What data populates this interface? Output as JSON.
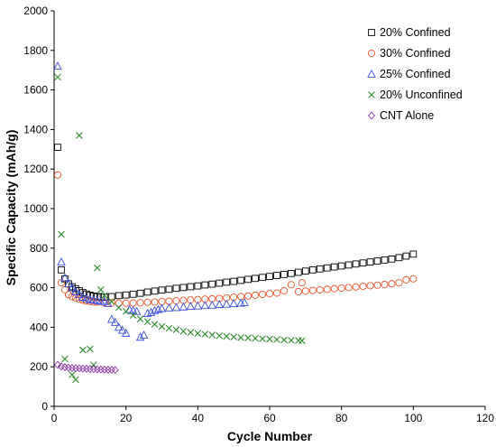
{
  "chart_data": {
    "type": "scatter",
    "xlabel": "Cycle Number",
    "ylabel": "Specific Capacity (mAh/g)",
    "xlim": [
      0,
      120
    ],
    "ylim": [
      0,
      2000
    ],
    "xticks": [
      0,
      20,
      40,
      60,
      80,
      100,
      120
    ],
    "yticks": [
      0,
      200,
      400,
      600,
      800,
      1000,
      1200,
      1400,
      1600,
      1800,
      2000
    ],
    "grid": false,
    "legend_position": "top-right",
    "series": [
      {
        "name": "20% Confined",
        "marker": "square",
        "color": "#000000",
        "points": [
          [
            1,
            1310
          ],
          [
            2,
            690
          ],
          [
            3,
            645
          ],
          [
            4,
            620
          ],
          [
            5,
            605
          ],
          [
            6,
            595
          ],
          [
            7,
            585
          ],
          [
            8,
            575
          ],
          [
            9,
            568
          ],
          [
            10,
            562
          ],
          [
            11,
            558
          ],
          [
            12,
            555
          ],
          [
            13,
            553
          ],
          [
            14,
            552
          ],
          [
            16,
            555
          ],
          [
            18,
            560
          ],
          [
            20,
            563
          ],
          [
            22,
            567
          ],
          [
            24,
            572
          ],
          [
            26,
            578
          ],
          [
            28,
            583
          ],
          [
            30,
            588
          ],
          [
            32,
            592
          ],
          [
            34,
            597
          ],
          [
            36,
            601
          ],
          [
            38,
            605
          ],
          [
            40,
            609
          ],
          [
            42,
            614
          ],
          [
            44,
            618
          ],
          [
            46,
            623
          ],
          [
            48,
            628
          ],
          [
            50,
            632
          ],
          [
            52,
            637
          ],
          [
            54,
            642
          ],
          [
            56,
            647
          ],
          [
            58,
            652
          ],
          [
            60,
            657
          ],
          [
            62,
            662
          ],
          [
            64,
            667
          ],
          [
            66,
            672
          ],
          [
            68,
            678
          ],
          [
            70,
            684
          ],
          [
            72,
            690
          ],
          [
            74,
            695
          ],
          [
            76,
            700
          ],
          [
            78,
            705
          ],
          [
            80,
            710
          ],
          [
            82,
            715
          ],
          [
            84,
            720
          ],
          [
            86,
            725
          ],
          [
            88,
            730
          ],
          [
            90,
            735
          ],
          [
            92,
            740
          ],
          [
            94,
            745
          ],
          [
            96,
            752
          ],
          [
            98,
            760
          ],
          [
            100,
            770
          ]
        ]
      },
      {
        "name": "30% Confined",
        "marker": "circle",
        "color": "#e8532a",
        "points": [
          [
            1,
            1170
          ],
          [
            2,
            625
          ],
          [
            3,
            590
          ],
          [
            4,
            565
          ],
          [
            5,
            555
          ],
          [
            6,
            548
          ],
          [
            7,
            542
          ],
          [
            8,
            537
          ],
          [
            9,
            533
          ],
          [
            10,
            530
          ],
          [
            11,
            528
          ],
          [
            12,
            527
          ],
          [
            14,
            525
          ],
          [
            16,
            523
          ],
          [
            18,
            522
          ],
          [
            20,
            522
          ],
          [
            22,
            523
          ],
          [
            24,
            524
          ],
          [
            26,
            526
          ],
          [
            28,
            528
          ],
          [
            30,
            530
          ],
          [
            32,
            532
          ],
          [
            34,
            534
          ],
          [
            36,
            536
          ],
          [
            38,
            538
          ],
          [
            40,
            540
          ],
          [
            42,
            542
          ],
          [
            44,
            544
          ],
          [
            46,
            546
          ],
          [
            48,
            549
          ],
          [
            50,
            552
          ],
          [
            52,
            555
          ],
          [
            54,
            558
          ],
          [
            56,
            562
          ],
          [
            58,
            566
          ],
          [
            60,
            570
          ],
          [
            62,
            573
          ],
          [
            64,
            585
          ],
          [
            66,
            615
          ],
          [
            68,
            580
          ],
          [
            69,
            625
          ],
          [
            70,
            583
          ],
          [
            72,
            586
          ],
          [
            74,
            589
          ],
          [
            76,
            592
          ],
          [
            78,
            595
          ],
          [
            80,
            598
          ],
          [
            82,
            601
          ],
          [
            84,
            604
          ],
          [
            86,
            607
          ],
          [
            88,
            610
          ],
          [
            90,
            613
          ],
          [
            92,
            616
          ],
          [
            94,
            620
          ],
          [
            96,
            625
          ],
          [
            98,
            640
          ],
          [
            100,
            645
          ]
        ]
      },
      {
        "name": "25% Confined",
        "marker": "triangle",
        "color": "#3b4fe0",
        "points": [
          [
            1,
            1720
          ],
          [
            2,
            730
          ],
          [
            3,
            650
          ],
          [
            4,
            620
          ],
          [
            5,
            600
          ],
          [
            6,
            580
          ],
          [
            7,
            565
          ],
          [
            8,
            552
          ],
          [
            9,
            545
          ],
          [
            10,
            540
          ],
          [
            11,
            538
          ],
          [
            12,
            535
          ],
          [
            13,
            532
          ],
          [
            14,
            530
          ],
          [
            15,
            520
          ],
          [
            16,
            440
          ],
          [
            17,
            425
          ],
          [
            18,
            400
          ],
          [
            19,
            385
          ],
          [
            20,
            370
          ],
          [
            21,
            490
          ],
          [
            22,
            485
          ],
          [
            23,
            480
          ],
          [
            24,
            350
          ],
          [
            25,
            360
          ],
          [
            26,
            470
          ],
          [
            27,
            475
          ],
          [
            28,
            485
          ],
          [
            29,
            490
          ],
          [
            30,
            495
          ],
          [
            32,
            498
          ],
          [
            34,
            500
          ],
          [
            36,
            503
          ],
          [
            38,
            506
          ],
          [
            40,
            508
          ],
          [
            42,
            510
          ],
          [
            44,
            512
          ],
          [
            46,
            515
          ],
          [
            48,
            517
          ],
          [
            50,
            520
          ],
          [
            52,
            522
          ],
          [
            53,
            525
          ]
        ]
      },
      {
        "name": "20% Unconfined",
        "marker": "x",
        "color": "#2e8b2e",
        "points": [
          [
            1,
            1665
          ],
          [
            2,
            870
          ],
          [
            3,
            240
          ],
          [
            5,
            160
          ],
          [
            6,
            135
          ],
          [
            7,
            1370
          ],
          [
            8,
            285
          ],
          [
            10,
            290
          ],
          [
            11,
            210
          ],
          [
            12,
            700
          ],
          [
            13,
            590
          ],
          [
            14,
            560
          ],
          [
            16,
            530
          ],
          [
            18,
            500
          ],
          [
            20,
            480
          ],
          [
            22,
            460
          ],
          [
            24,
            442
          ],
          [
            26,
            428
          ],
          [
            28,
            415
          ],
          [
            30,
            404
          ],
          [
            32,
            395
          ],
          [
            34,
            387
          ],
          [
            36,
            380
          ],
          [
            38,
            374
          ],
          [
            40,
            369
          ],
          [
            42,
            365
          ],
          [
            44,
            361
          ],
          [
            46,
            357
          ],
          [
            48,
            354
          ],
          [
            50,
            351
          ],
          [
            52,
            348
          ],
          [
            54,
            346
          ],
          [
            56,
            344
          ],
          [
            58,
            342
          ],
          [
            60,
            340
          ],
          [
            62,
            338
          ],
          [
            64,
            336
          ],
          [
            66,
            334
          ],
          [
            68,
            333
          ],
          [
            69,
            332
          ]
        ]
      },
      {
        "name": "CNT Alone",
        "marker": "diamond",
        "color": "#8b2fa8",
        "points": [
          [
            1,
            210
          ],
          [
            2,
            202
          ],
          [
            3,
            198
          ],
          [
            4,
            196
          ],
          [
            5,
            194
          ],
          [
            6,
            193
          ],
          [
            7,
            192
          ],
          [
            8,
            191
          ],
          [
            9,
            190
          ],
          [
            10,
            189
          ],
          [
            11,
            188
          ],
          [
            12,
            187
          ],
          [
            13,
            186
          ],
          [
            14,
            186
          ],
          [
            15,
            185
          ],
          [
            16,
            185
          ],
          [
            17,
            184
          ]
        ]
      }
    ]
  }
}
